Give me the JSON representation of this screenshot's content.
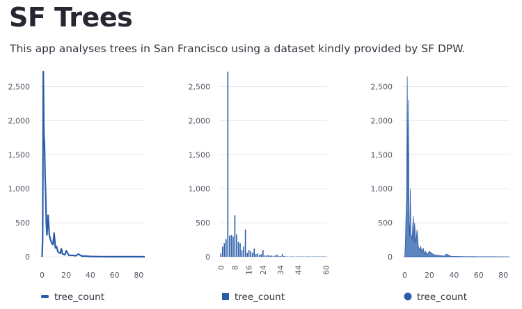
{
  "page": {
    "title": "SF Trees",
    "subtitle": "This app analyses trees in San Francisco using a dataset kindly provided by SF DPW."
  },
  "colors": {
    "series": "#2a5caa",
    "grid": "#e6e7ea",
    "tick": "#555867"
  },
  "chart_data": [
    {
      "type": "line",
      "legend_marker": "line",
      "series": [
        {
          "name": "tree_count",
          "x": [
            0,
            0.5,
            1,
            1.5,
            2,
            2.5,
            3,
            3.5,
            4,
            5,
            6,
            7,
            8,
            9,
            10,
            11,
            12,
            13,
            14,
            15,
            16,
            17,
            18,
            19,
            20,
            22,
            24,
            26,
            28,
            30,
            33,
            36,
            40,
            45,
            50,
            55,
            60,
            65,
            70,
            75,
            80,
            85
          ],
          "y": [
            0,
            250,
            2720,
            1800,
            1650,
            1200,
            900,
            500,
            320,
            610,
            320,
            250,
            200,
            180,
            350,
            130,
            150,
            80,
            60,
            50,
            120,
            40,
            35,
            30,
            90,
            25,
            20,
            20,
            15,
            40,
            10,
            10,
            5,
            3,
            2,
            2,
            1,
            1,
            1,
            1,
            1,
            0
          ]
        }
      ],
      "xticks": [
        0,
        20,
        40,
        60,
        80
      ],
      "xlim": [
        -2,
        85
      ],
      "yticks": [
        0,
        500,
        1000,
        1500,
        2000,
        2500
      ],
      "ylim": [
        0,
        2750
      ],
      "ytick_labels": [
        "0",
        "500",
        "1,000",
        "1,500",
        "2,000",
        "2,500"
      ]
    },
    {
      "type": "bar",
      "legend_marker": "square",
      "series": [
        {
          "name": "tree_count",
          "x": [
            0,
            1,
            2,
            3,
            4,
            5,
            6,
            7,
            8,
            9,
            10,
            11,
            12,
            13,
            14,
            15,
            16,
            17,
            18,
            19,
            20,
            21,
            22,
            23,
            24,
            25,
            26,
            27,
            28,
            29,
            30,
            31,
            32,
            33,
            34,
            35,
            36,
            37,
            38,
            39,
            40,
            41,
            42,
            43,
            44,
            45,
            46,
            47,
            48,
            49,
            50,
            51,
            52,
            53,
            54,
            55,
            56,
            57,
            58,
            59,
            60
          ],
          "y": [
            50,
            150,
            200,
            260,
            2720,
            310,
            320,
            300,
            610,
            330,
            220,
            200,
            100,
            150,
            400,
            60,
            100,
            80,
            60,
            120,
            40,
            50,
            30,
            40,
            100,
            20,
            20,
            25,
            15,
            20,
            10,
            20,
            30,
            10,
            10,
            40,
            10,
            5,
            5,
            5,
            5,
            5,
            5,
            5,
            5,
            5,
            5,
            5,
            5,
            5,
            5,
            5,
            5,
            5,
            5,
            5,
            5,
            5,
            5,
            5,
            5
          ]
        }
      ],
      "xticks": [
        0,
        8,
        16,
        24,
        34,
        44,
        60
      ],
      "xtick_labels": [
        "0",
        "8",
        "16",
        "24",
        "34",
        "44",
        "60"
      ],
      "yticks": [
        0,
        500,
        1000,
        1500,
        2000,
        2500
      ],
      "ylim": [
        0,
        2750
      ],
      "ytick_labels": [
        "0",
        "500",
        "1,000",
        "1,500",
        "2,000",
        "2,500"
      ]
    },
    {
      "type": "area",
      "legend_marker": "circle",
      "series": [
        {
          "name": "tree_count",
          "x": [
            0,
            0.5,
            1,
            1.5,
            2,
            2.5,
            3,
            3.5,
            4,
            4.5,
            5,
            5.5,
            6,
            6.5,
            7,
            7.5,
            8,
            9,
            10,
            10.5,
            11,
            12,
            13,
            14,
            15,
            16,
            17,
            18,
            20,
            22,
            24,
            26,
            28,
            30,
            32,
            34,
            36,
            38,
            40,
            45,
            50,
            55,
            60,
            65,
            70,
            80,
            85
          ],
          "y": [
            0,
            200,
            600,
            900,
            2650,
            800,
            2300,
            500,
            300,
            1000,
            350,
            300,
            250,
            450,
            600,
            200,
            500,
            200,
            400,
            300,
            150,
            100,
            150,
            60,
            130,
            40,
            80,
            30,
            80,
            50,
            30,
            25,
            20,
            15,
            10,
            40,
            20,
            5,
            5,
            3,
            2,
            2,
            1,
            1,
            1,
            0,
            0
          ]
        }
      ],
      "xticks": [
        0,
        20,
        40,
        60,
        80
      ],
      "xlim": [
        -2,
        85
      ],
      "yticks": [
        0,
        500,
        1000,
        1500,
        2000,
        2500
      ],
      "ylim": [
        0,
        2750
      ],
      "ytick_labels": [
        "0",
        "500",
        "1,000",
        "1,500",
        "2,000",
        "2,500"
      ]
    }
  ]
}
